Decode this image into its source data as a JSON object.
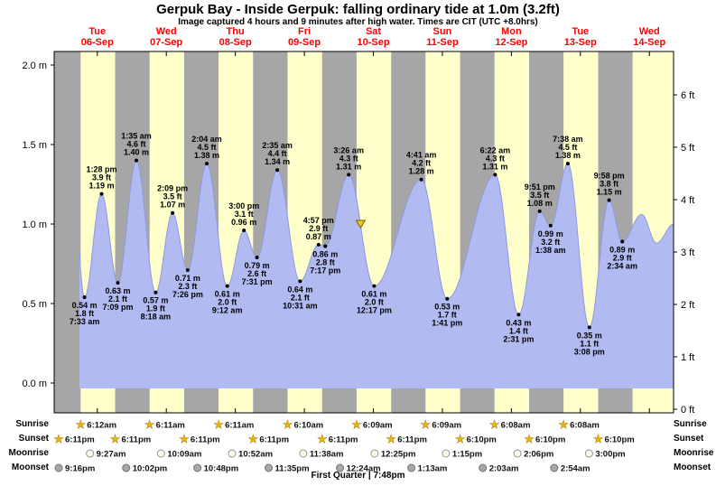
{
  "header": {
    "title": "Gerpuk Bay - Inside Gerpuk: falling  ordinary tide at 1.0m (3.2ft)",
    "subtitle": "Image captured 4 hours and 9 minutes after high water. Times are CIT (UTC +8.0hrs)"
  },
  "labels": {
    "sunrise": "Sunrise",
    "sunset": "Sunset",
    "moonrise": "Moonrise",
    "moonset": "Moonset"
  },
  "colors": {
    "plot_bg": "#ffffcc",
    "night_band": "#a6a6a6",
    "tide_fill": "#b2baf2",
    "tide_stroke": "#8f99e0",
    "day_label": "#ff0000",
    "marker_fill": "#eec81e",
    "marker_stroke": "#7a6000",
    "star_fill": "#edb500",
    "star_stroke": "#6b5200",
    "moonrise_fill": "#ffffe8",
    "moonrise_stroke": "#909090",
    "moonset_fill": "#a8a8a8",
    "moonset_stroke": "#707070"
  },
  "chart_data": {
    "type": "area",
    "title": "Gerpuk Bay - Inside Gerpuk: falling ordinary tide at 1.0m (3.2ft)",
    "ylabel_left_unit": "m",
    "ylabel_right_unit": "ft",
    "y_left_ticks": [
      {
        "v": 0.0,
        "label": "0.0 m"
      },
      {
        "v": 0.5,
        "label": "0.5 m"
      },
      {
        "v": 1.0,
        "label": "1.0 m"
      },
      {
        "v": 1.5,
        "label": "1.5 m"
      },
      {
        "v": 2.0,
        "label": "2.0 m"
      }
    ],
    "y_right_ticks": [
      {
        "v": 0,
        "label": "0 ft"
      },
      {
        "v": 1,
        "label": "1 ft"
      },
      {
        "v": 2,
        "label": "2 ft"
      },
      {
        "v": 3,
        "label": "3 ft"
      },
      {
        "v": 4,
        "label": "4 ft"
      },
      {
        "v": 5,
        "label": "5 ft"
      },
      {
        "v": 6,
        "label": "6 ft"
      }
    ],
    "days": [
      {
        "name": "Tue",
        "date": "06-Sep"
      },
      {
        "name": "Wed",
        "date": "07-Sep"
      },
      {
        "name": "Thu",
        "date": "08-Sep"
      },
      {
        "name": "Fri",
        "date": "09-Sep"
      },
      {
        "name": "Sat",
        "date": "10-Sep"
      },
      {
        "name": "Sun",
        "date": "11-Sep"
      },
      {
        "name": "Mon",
        "date": "12-Sep"
      },
      {
        "name": "Tue",
        "date": "13-Sep"
      },
      {
        "name": "Wed",
        "date": "14-Sep"
      }
    ],
    "night_bands": [
      [
        -3,
        6.2
      ],
      [
        18.18,
        30.18
      ],
      [
        42.18,
        54.18
      ],
      [
        66.18,
        78.17
      ],
      [
        90.18,
        102.15
      ],
      [
        114.18,
        126.15
      ],
      [
        138.17,
        150.13
      ],
      [
        162.17,
        174.13
      ],
      [
        186.17,
        198.13
      ]
    ],
    "events": [
      {
        "t": 3.2,
        "type": "high",
        "height_m": 1.35,
        "labeled": false
      },
      {
        "t": 7.55,
        "type": "low",
        "height_m": 0.54,
        "m_label": "0.54 m",
        "ft_label": "1.8 ft",
        "time_label": "7:33 am",
        "labeled": true
      },
      {
        "t": 13.47,
        "type": "high",
        "height_m": 1.19,
        "m_label": "1.19 m",
        "ft_label": "3.9 ft",
        "time_label": "1:28 pm",
        "labeled": true
      },
      {
        "t": 19.15,
        "type": "low",
        "height_m": 0.63,
        "m_label": "0.63 m",
        "ft_label": "2.1 ft",
        "time_label": "7:09 pm",
        "labeled": true
      },
      {
        "t": 25.58,
        "type": "high",
        "height_m": 1.4,
        "m_label": "1.40 m",
        "ft_label": "4.6 ft",
        "time_label": "1:35 am",
        "labeled": true
      },
      {
        "t": 32.3,
        "type": "low",
        "height_m": 0.57,
        "m_label": "0.57 m",
        "ft_label": "1.9 ft",
        "time_label": "8:18 am",
        "labeled": true
      },
      {
        "t": 38.15,
        "type": "high",
        "height_m": 1.07,
        "m_label": "1.07 m",
        "ft_label": "3.5 ft",
        "time_label": "2:09 pm",
        "labeled": true
      },
      {
        "t": 43.43,
        "type": "low",
        "height_m": 0.71,
        "m_label": "0.71 m",
        "ft_label": "2.3 ft",
        "time_label": "7:26 pm",
        "labeled": true
      },
      {
        "t": 50.07,
        "type": "high",
        "height_m": 1.38,
        "m_label": "1.38 m",
        "ft_label": "4.5 ft",
        "time_label": "2:04 am",
        "labeled": true
      },
      {
        "t": 57.2,
        "type": "low",
        "height_m": 0.61,
        "m_label": "0.61 m",
        "ft_label": "2.0 ft",
        "time_label": "9:12 am",
        "labeled": true
      },
      {
        "t": 63.0,
        "type": "high",
        "height_m": 0.96,
        "m_label": "0.96 m",
        "ft_label": "3.1 ft",
        "time_label": "3:00 pm",
        "labeled": true
      },
      {
        "t": 67.52,
        "type": "low",
        "height_m": 0.79,
        "m_label": "0.79 m",
        "ft_label": "2.6 ft",
        "time_label": "7:31 pm",
        "labeled": true
      },
      {
        "t": 74.58,
        "type": "high",
        "height_m": 1.34,
        "m_label": "1.34 m",
        "ft_label": "4.4 ft",
        "time_label": "2:35 am",
        "labeled": true
      },
      {
        "t": 82.52,
        "type": "low",
        "height_m": 0.64,
        "m_label": "0.64 m",
        "ft_label": "2.1 ft",
        "time_label": "10:31 am",
        "labeled": true
      },
      {
        "t": 88.95,
        "type": "high",
        "height_m": 0.87,
        "m_label": "0.87 m",
        "ft_label": "2.9 ft",
        "time_label": "4:57 pm",
        "labeled": true
      },
      {
        "t": 91.28,
        "type": "low",
        "height_m": 0.86,
        "m_label": "0.86 m",
        "ft_label": "2.8 ft",
        "time_label": "7:17 pm",
        "labeled": true
      },
      {
        "t": 99.43,
        "type": "high",
        "height_m": 1.31,
        "m_label": "1.31 m",
        "ft_label": "4.3 ft",
        "time_label": "3:26 am",
        "labeled": true
      },
      {
        "t": 108.28,
        "type": "low",
        "height_m": 0.61,
        "m_label": "0.61 m",
        "ft_label": "2.0 ft",
        "time_label": "12:17 pm",
        "labeled": true
      },
      {
        "t": 124.68,
        "type": "high",
        "height_m": 1.28,
        "m_label": "1.28 m",
        "ft_label": "4.2 ft",
        "time_label": "4:41 am",
        "labeled": true
      },
      {
        "t": 133.68,
        "type": "low",
        "height_m": 0.53,
        "m_label": "0.53 m",
        "ft_label": "1.7 ft",
        "time_label": "1:41 pm",
        "labeled": true
      },
      {
        "t": 150.37,
        "type": "high",
        "height_m": 1.31,
        "m_label": "1.31 m",
        "ft_label": "4.3 ft",
        "time_label": "6:22 am",
        "labeled": true
      },
      {
        "t": 158.52,
        "type": "low",
        "height_m": 0.43,
        "m_label": "0.43 m",
        "ft_label": "1.4 ft",
        "time_label": "2:31 pm",
        "labeled": true
      },
      {
        "t": 165.85,
        "type": "high",
        "height_m": 1.08,
        "m_label": "1.08 m",
        "ft_label": "3.5 ft",
        "time_label": "9:51 pm",
        "labeled": true
      },
      {
        "t": 169.63,
        "type": "low",
        "height_m": 0.99,
        "m_label": "0.99 m",
        "ft_label": "3.2 ft",
        "time_label": "1:38 am",
        "labeled": true
      },
      {
        "t": 175.63,
        "type": "high",
        "height_m": 1.38,
        "m_label": "1.38 m",
        "ft_label": "4.5 ft",
        "time_label": "7:38 am",
        "labeled": true
      },
      {
        "t": 183.13,
        "type": "low",
        "height_m": 0.35,
        "m_label": "0.35 m",
        "ft_label": "1.1 ft",
        "time_label": "3:08 pm",
        "labeled": true
      },
      {
        "t": 189.97,
        "type": "high",
        "height_m": 1.15,
        "m_label": "1.15 m",
        "ft_label": "3.8 ft",
        "time_label": "9:58 pm",
        "labeled": true
      },
      {
        "t": 194.57,
        "type": "low",
        "height_m": 0.89,
        "m_label": "0.89 m",
        "ft_label": "2.9 ft",
        "time_label": "2:34 am",
        "labeled": true
      },
      {
        "t": 201.3,
        "type": "high",
        "height_m": 1.06,
        "labeled": false
      },
      {
        "t": 206.5,
        "type": "low",
        "height_m": 0.88,
        "labeled": false
      },
      {
        "t": 212.5,
        "type": "high",
        "height_m": 1.0,
        "labeled": false
      }
    ],
    "current_tide_marker": {
      "t": 103.58,
      "height_m": 1.0
    },
    "astro": {
      "sunrise": [
        {
          "t": 6.2,
          "label": "6:12am"
        },
        {
          "t": 30.18,
          "label": "6:11am"
        },
        {
          "t": 54.18,
          "label": "6:11am"
        },
        {
          "t": 78.17,
          "label": "6:10am"
        },
        {
          "t": 102.15,
          "label": "6:09am"
        },
        {
          "t": 126.15,
          "label": "6:09am"
        },
        {
          "t": 150.13,
          "label": "6:08am"
        },
        {
          "t": 174.13,
          "label": "6:08am"
        }
      ],
      "sunset": [
        {
          "t": -5.82,
          "label": "6:11pm"
        },
        {
          "t": 18.18,
          "label": "6:11pm"
        },
        {
          "t": 42.18,
          "label": "6:11pm"
        },
        {
          "t": 66.18,
          "label": "6:11pm"
        },
        {
          "t": 90.18,
          "label": "6:11pm"
        },
        {
          "t": 114.18,
          "label": "6:11pm"
        },
        {
          "t": 138.17,
          "label": "6:10pm"
        },
        {
          "t": 162.17,
          "label": "6:10pm"
        },
        {
          "t": 186.17,
          "label": "6:10pm"
        }
      ],
      "moonrise": [
        {
          "t": 9.45,
          "label": "9:27am"
        },
        {
          "t": 34.15,
          "label": "10:09am"
        },
        {
          "t": 58.87,
          "label": "10:52am"
        },
        {
          "t": 83.63,
          "label": "11:38am"
        },
        {
          "t": 108.42,
          "label": "12:25pm"
        },
        {
          "t": 133.25,
          "label": "1:15pm"
        },
        {
          "t": 158.1,
          "label": "2:06pm"
        },
        {
          "t": 183.0,
          "label": "3:00pm"
        }
      ],
      "moonset": [
        {
          "t": -2.73,
          "label": "9:16pm"
        },
        {
          "t": 22.03,
          "label": "10:02pm"
        },
        {
          "t": 46.8,
          "label": "10:48pm"
        },
        {
          "t": 71.58,
          "label": "11:35pm"
        },
        {
          "t": 96.4,
          "label": "12:24am"
        },
        {
          "t": 121.22,
          "label": "1:13am"
        },
        {
          "t": 146.05,
          "label": "2:03am"
        },
        {
          "t": 170.9,
          "label": "2:54am"
        }
      ],
      "moon_phase": "First Quarter | 7:48pm"
    }
  }
}
